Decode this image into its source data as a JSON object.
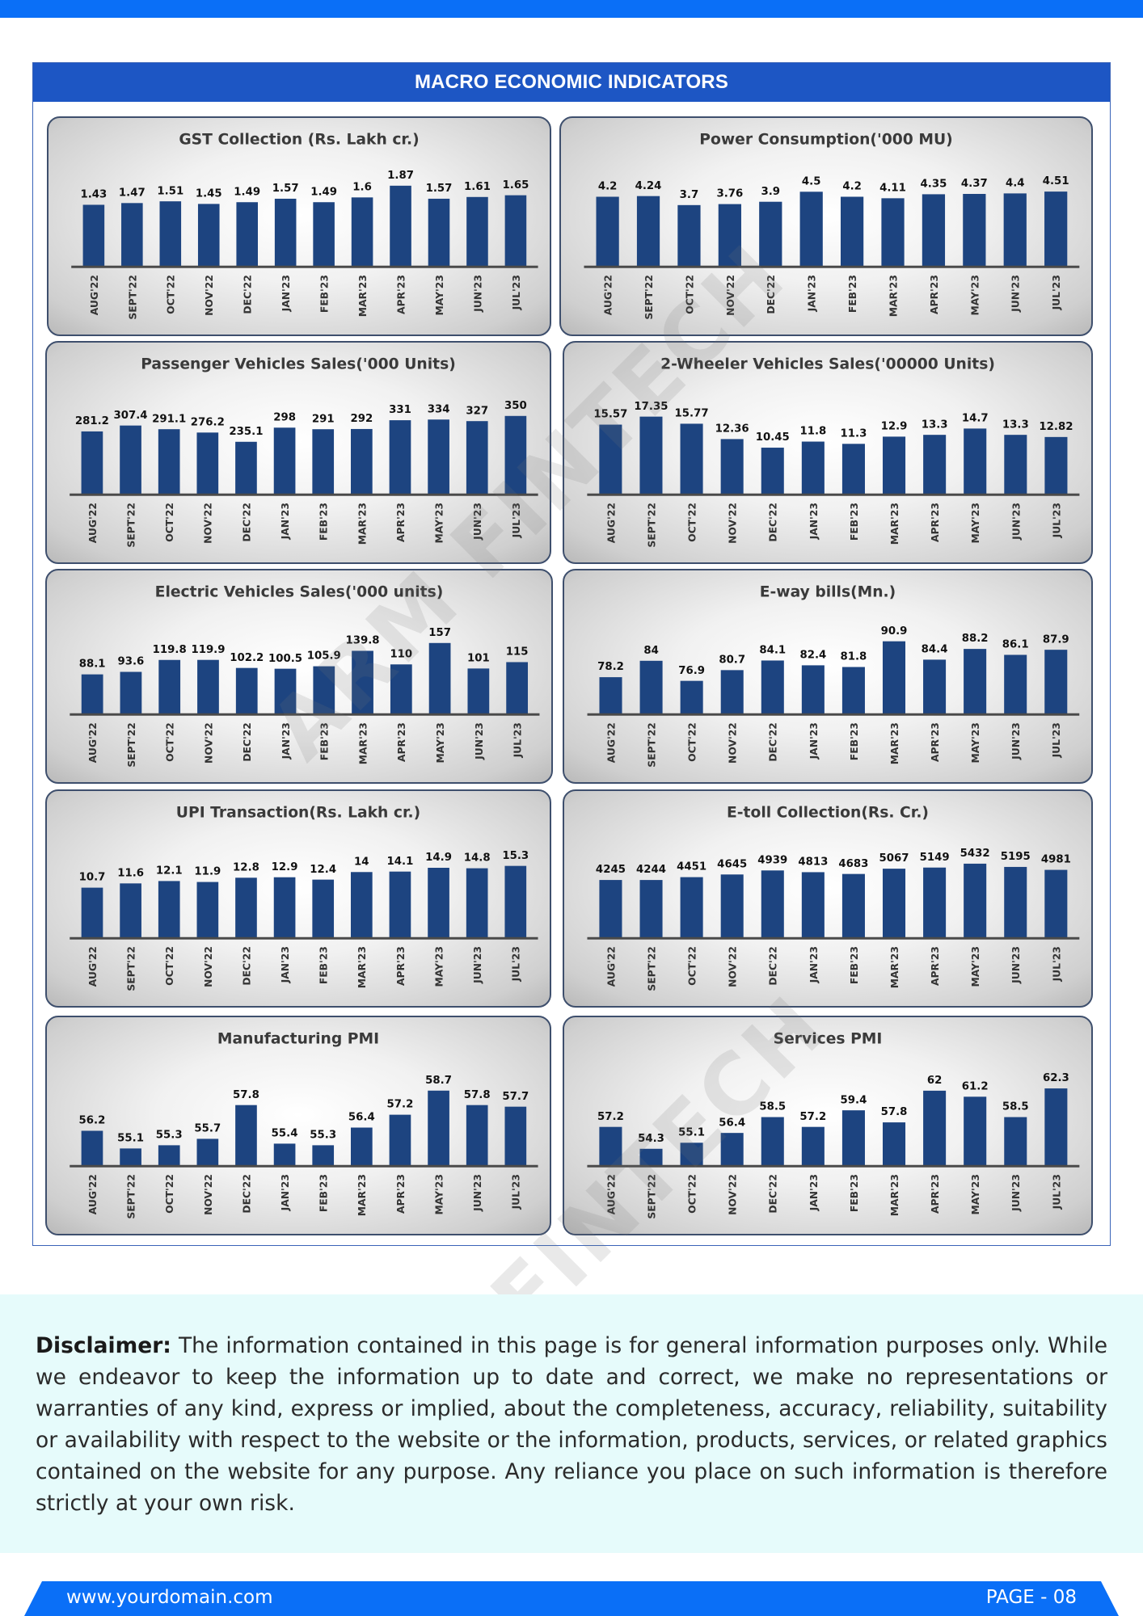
{
  "header": {
    "title": "MACRO ECONOMIC INDICATORS"
  },
  "watermark": "ARM FINTECH",
  "colors": {
    "bar": "#1d4480",
    "accent": "#0a6ff7",
    "header": "#1d56c4"
  },
  "months": [
    "AUG'22",
    "SEPT'22",
    "OCT'22",
    "NOV'22",
    "DEC'22",
    "JAN'23",
    "FEB'23",
    "MAR'23",
    "APR'23",
    "MAY'23",
    "JUN'23",
    "JUL'23"
  ],
  "chart_data": [
    {
      "type": "bar",
      "title": "GST Collection (Rs. Lakh cr.)",
      "categories": [
        "AUG'22",
        "SEPT'22",
        "OCT'22",
        "NOV'22",
        "DEC'22",
        "JAN'23",
        "FEB'23",
        "MAR'23",
        "APR'23",
        "MAY'23",
        "JUN'23",
        "JUL'23"
      ],
      "values": [
        1.43,
        1.47,
        1.51,
        1.45,
        1.49,
        1.57,
        1.49,
        1.6,
        1.87,
        1.57,
        1.61,
        1.65
      ],
      "labels": [
        "1.43",
        "1.47",
        "1.51",
        "1.45",
        "1.49",
        "1.57",
        "1.49",
        "1.6",
        "1.87",
        "1.57",
        "1.61",
        "1.65"
      ],
      "ylim": [
        0,
        2.0
      ]
    },
    {
      "type": "bar",
      "title": "Power Consumption('000 MU)",
      "categories": [
        "AUG'22",
        "SEPT'22",
        "OCT'22",
        "NOV'22",
        "DEC'22",
        "JAN'23",
        "FEB'23",
        "MAR'23",
        "APR'23",
        "MAY'23",
        "JUN'23",
        "JUL'23"
      ],
      "values": [
        4.2,
        4.24,
        3.7,
        3.76,
        3.9,
        4.5,
        4.2,
        4.11,
        4.35,
        4.37,
        4.4,
        4.51
      ],
      "labels": [
        "4.2",
        "4.24",
        "3.7",
        "3.76",
        "3.9",
        "4.5",
        "4.2",
        "4.11",
        "4.35",
        "4.37",
        "4.4",
        "4.51"
      ],
      "ylim": [
        0,
        5.2
      ]
    },
    {
      "type": "bar",
      "title": "Passenger Vehicles Sales('000 Units)",
      "categories": [
        "AUG'22",
        "SEPT'22",
        "OCT'22",
        "NOV'22",
        "DEC'22",
        "JAN'23",
        "FEB'23",
        "MAR'23",
        "APR'23",
        "MAY'23",
        "JUN'23",
        "JUL'23"
      ],
      "values": [
        281.2,
        307.4,
        291.1,
        276.2,
        235.1,
        298,
        291,
        292,
        331,
        334,
        327,
        350
      ],
      "labels": [
        "281.2",
        "307.4",
        "291.1",
        "276.2",
        "235.1",
        "298",
        "291",
        "292",
        "331",
        "334",
        "327",
        "350"
      ],
      "ylim": [
        0,
        400
      ]
    },
    {
      "type": "bar",
      "title": "2-Wheeler Vehicles Sales('00000 Units)",
      "categories": [
        "AUG'22",
        "SEPT'22",
        "OCT'22",
        "NOV'22",
        "DEC'22",
        "JAN'23",
        "FEB'23",
        "MAR'23",
        "APR'23",
        "MAY'23",
        "JUN'23",
        "JUL'23"
      ],
      "values": [
        15.57,
        17.35,
        15.77,
        12.36,
        10.45,
        11.8,
        11.3,
        12.9,
        13.3,
        14.7,
        13.3,
        12.82
      ],
      "labels": [
        "15.57",
        "17.35",
        "15.77",
        "12.36",
        "10.45",
        "11.8",
        "11.3",
        "12.9",
        "13.3",
        "14.7",
        "13.3",
        "12.82"
      ],
      "ylim": [
        0,
        20
      ]
    },
    {
      "type": "bar",
      "title": "Electric Vehicles Sales('000 units)",
      "categories": [
        "AUG'22",
        "SEPT'22",
        "OCT'22",
        "NOV'22",
        "DEC'22",
        "JAN'23",
        "FEB'23",
        "MAR'23",
        "APR'23",
        "MAY'23",
        "JUN'23",
        "JUL'23"
      ],
      "values": [
        88.1,
        93.6,
        119.8,
        119.9,
        102.2,
        100.5,
        105.9,
        139.8,
        110,
        157,
        101,
        115
      ],
      "labels": [
        "88.1",
        "93.6",
        "119.8",
        "119.9",
        "102.2",
        "100.5",
        "105.9",
        "139.8",
        "110",
        "157",
        "101",
        "115"
      ],
      "ylim": [
        0,
        180
      ]
    },
    {
      "type": "bar",
      "title": "E-way bills(Mn.)",
      "categories": [
        "AUG'22",
        "SEPT'22",
        "OCT'22",
        "NOV'22",
        "DEC'22",
        "JAN'23",
        "FEB'23",
        "MAR'23",
        "APR'23",
        "MAY'23",
        "JUN'23",
        "JUL'23"
      ],
      "values": [
        78.2,
        84,
        76.9,
        80.7,
        84.1,
        82.4,
        81.8,
        90.9,
        84.4,
        88.2,
        86.1,
        87.9
      ],
      "labels": [
        "78.2",
        "84",
        "76.9",
        "80.7",
        "84.1",
        "82.4",
        "81.8",
        "90.9",
        "84.4",
        "88.2",
        "86.1",
        "87.9"
      ],
      "ylim": [
        65,
        94
      ]
    },
    {
      "type": "bar",
      "title": "UPI Transaction(Rs. Lakh cr.)",
      "categories": [
        "AUG'22",
        "SEPT'22",
        "OCT'22",
        "NOV'22",
        "DEC'22",
        "JAN'23",
        "FEB'23",
        "MAR'23",
        "APR'23",
        "MAY'23",
        "JUN'23",
        "JUL'23"
      ],
      "values": [
        10.7,
        11.6,
        12.1,
        11.9,
        12.8,
        12.9,
        12.4,
        14,
        14.1,
        14.9,
        14.8,
        15.3
      ],
      "labels": [
        "10.7",
        "11.6",
        "12.1",
        "11.9",
        "12.8",
        "12.9",
        "12.4",
        "14",
        "14.1",
        "14.9",
        "14.8",
        "15.3"
      ],
      "ylim": [
        0,
        18
      ]
    },
    {
      "type": "bar",
      "title": "E-toll Collection(Rs. Cr.)",
      "categories": [
        "AUG'22",
        "SEPT'22",
        "OCT'22",
        "NOV'22",
        "DEC'22",
        "JAN'23",
        "FEB'23",
        "MAR'23",
        "APR'23",
        "MAY'23",
        "JUN'23",
        "JUL'23"
      ],
      "values": [
        4245,
        4244,
        4451,
        4645,
        4939,
        4813,
        4683,
        5067,
        5149,
        5432,
        5195,
        4981
      ],
      "labels": [
        "4245",
        "4244",
        "4451",
        "4645",
        "4939",
        "4813",
        "4683",
        "5067",
        "5149",
        "5432",
        "5195",
        "4981"
      ],
      "ylim": [
        0,
        6200
      ]
    },
    {
      "type": "bar",
      "title": "Manufacturing PMI",
      "categories": [
        "AUG'22",
        "SEPT'22",
        "OCT'22",
        "NOV'22",
        "DEC'22",
        "JAN'23",
        "FEB'23",
        "MAR'23",
        "APR'23",
        "MAY'23",
        "JUN'23",
        "JUL'23"
      ],
      "values": [
        56.2,
        55.1,
        55.3,
        55.7,
        57.8,
        55.4,
        55.3,
        56.4,
        57.2,
        58.7,
        57.8,
        57.7
      ],
      "labels": [
        "56.2",
        "55.1",
        "55.3",
        "55.7",
        "57.8",
        "55.4",
        "55.3",
        "56.4",
        "57.2",
        "58.7",
        "57.8",
        "57.7"
      ],
      "ylim": [
        54,
        59.4
      ]
    },
    {
      "type": "bar",
      "title": "Services PMI",
      "categories": [
        "AUG'22",
        "SEPT'22",
        "OCT'22",
        "NOV'22",
        "DEC'22",
        "JAN'23",
        "FEB'23",
        "MAR'23",
        "APR'23",
        "MAY'23",
        "JUN'23",
        "JUL'23"
      ],
      "values": [
        57.2,
        54.3,
        55.1,
        56.4,
        58.5,
        57.2,
        59.4,
        57.8,
        62,
        61.2,
        58.5,
        62.3
      ],
      "labels": [
        "57.2",
        "54.3",
        "55.1",
        "56.4",
        "58.5",
        "57.2",
        "59.4",
        "57.8",
        "62",
        "61.2",
        "58.5",
        "62.3"
      ],
      "ylim": [
        52,
        63.5
      ]
    }
  ],
  "disclaimer": {
    "label": "Disclaimer:",
    "text": " The information contained in this page is for general information purposes only.  While we endeavor to keep the information up to date and correct, we make no representations or warranties of any kind, express or implied, about the completeness, accuracy, reliability, suitability or availability with respect to the website or the information, products, services, or related graphics contained on the website for any purpose. Any reliance you place on such information is therefore strictly at your own risk."
  },
  "footer": {
    "url": "www.yourdomain.com",
    "page": "PAGE - 08"
  }
}
